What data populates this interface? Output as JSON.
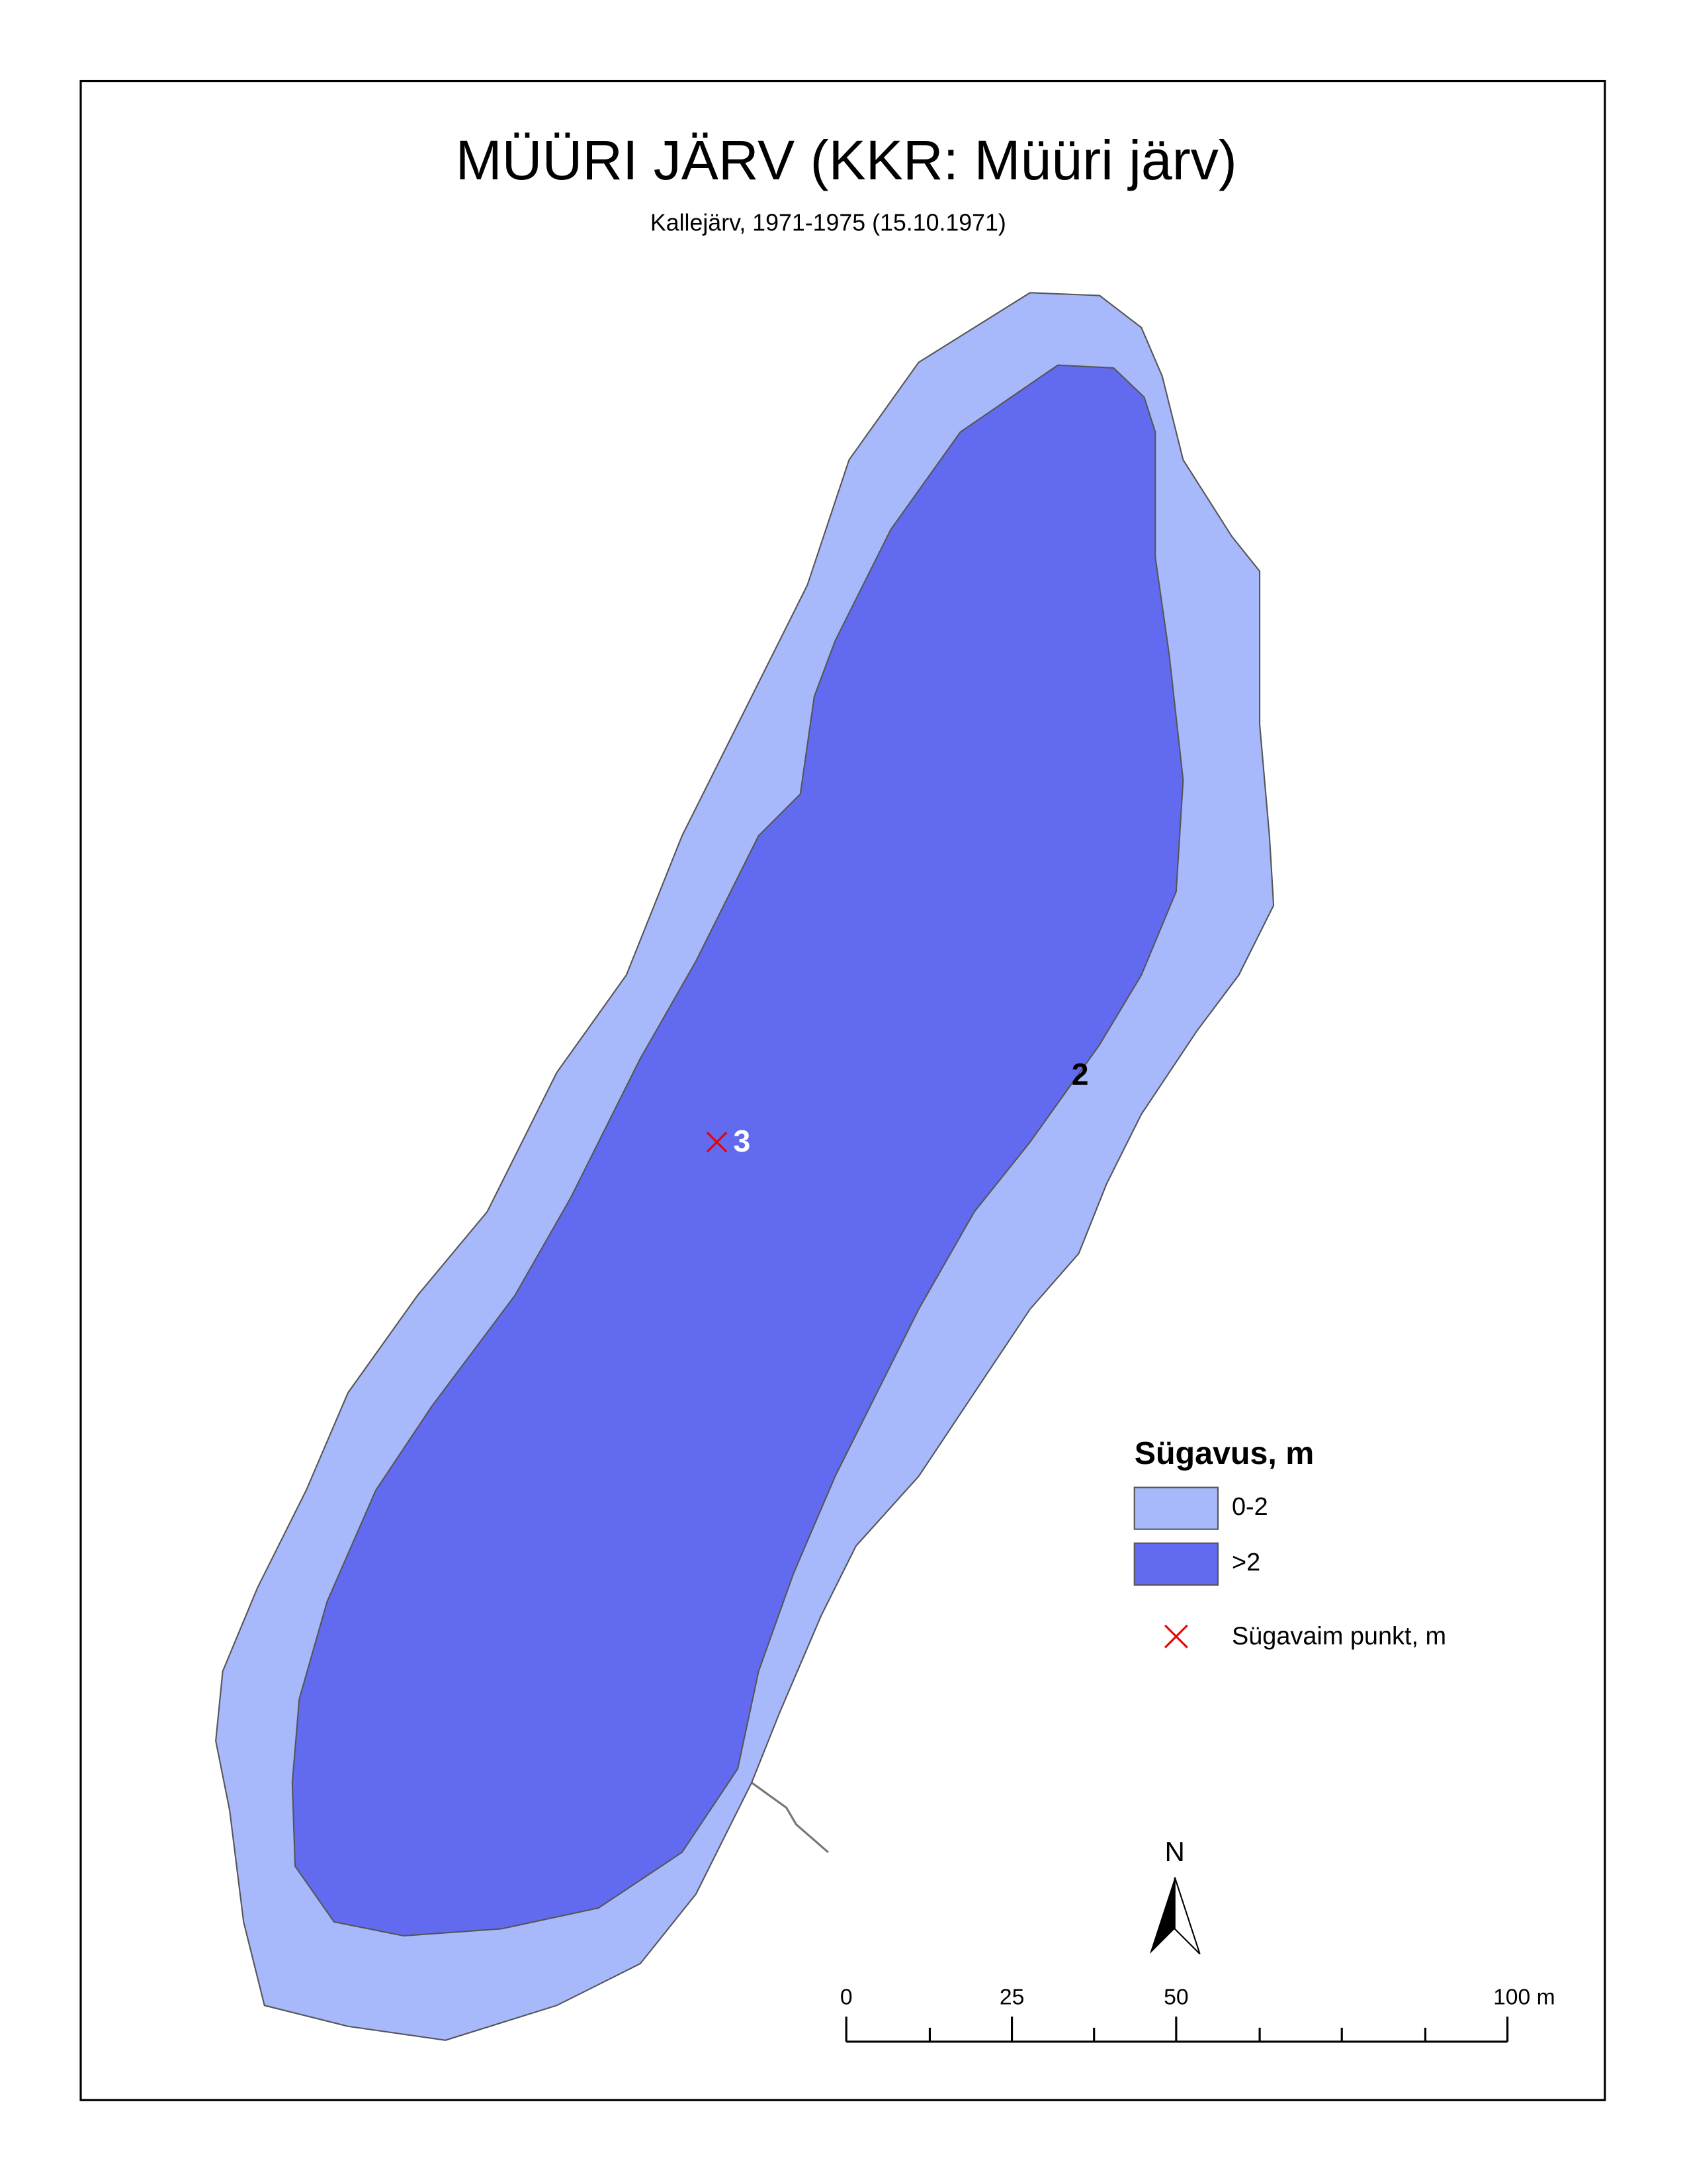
{
  "header": {
    "title": "MÜÜRI JÄRV (KKR: Müüri järv)",
    "subtitle": "Kallejärv, 1971-1975 (15.10.1971)"
  },
  "map": {
    "depth_labels": [
      "2",
      "3"
    ]
  },
  "legend": {
    "title": "Sügavus, m",
    "items": [
      "0-2",
      ">2",
      "Sügavaim punkt, m"
    ]
  },
  "north_arrow": {
    "label": "N"
  },
  "scale_bar": {
    "labels": [
      "0",
      "25",
      "50",
      "100 m"
    ]
  }
}
